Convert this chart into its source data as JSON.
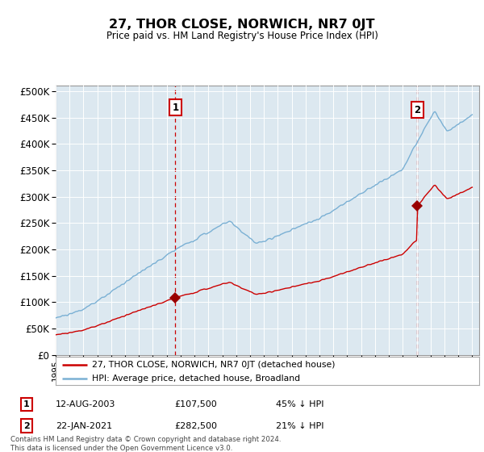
{
  "title": "27, THOR CLOSE, NORWICH, NR7 0JT",
  "subtitle": "Price paid vs. HM Land Registry's House Price Index (HPI)",
  "legend_line1": "27, THOR CLOSE, NORWICH, NR7 0JT (detached house)",
  "legend_line2": "HPI: Average price, detached house, Broadland",
  "sale1_label": "1",
  "sale1_date": "12-AUG-2003",
  "sale1_price": "£107,500",
  "sale1_hpi": "45% ↓ HPI",
  "sale1_year": 2003.62,
  "sale1_value": 107500,
  "sale2_label": "2",
  "sale2_date": "22-JAN-2021",
  "sale2_price": "£282,500",
  "sale2_hpi": "21% ↓ HPI",
  "sale2_year": 2021.05,
  "sale2_value": 282500,
  "hpi_color": "#7ab0d4",
  "price_color": "#cc0000",
  "marker_color": "#990000",
  "vline_color": "#cc0000",
  "bg_color": "#dce8f0",
  "footer_text": "Contains HM Land Registry data © Crown copyright and database right 2024.\nThis data is licensed under the Open Government Licence v3.0.",
  "xmin": 1995,
  "xmax": 2025.5
}
